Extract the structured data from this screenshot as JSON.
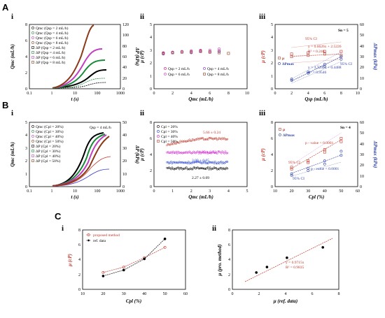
{
  "sections": [
    "A",
    "B",
    "C"
  ],
  "subpanels": [
    "i",
    "ii",
    "iii"
  ],
  "A": {
    "i": {
      "xlabel": "t (s)",
      "ylabel": "Qmc (mL/h)",
      "y2label": "ΔP (kPa)",
      "xticks": [
        "0.1",
        "1",
        "10",
        "100",
        "1000"
      ],
      "yticks": [
        "0",
        "2",
        "4",
        "6",
        "8"
      ],
      "y2ticks": [
        "0",
        "20",
        "40",
        "60",
        "80",
        "100",
        "120"
      ],
      "legend": [
        "Qmc (Qsp = 2 mL/h)",
        "Qmc (Qsp = 4 mL/h)",
        "Qmc (Qsp = 6 mL/h)",
        "Qmc (Qsp = 8 mL/h)",
        "ΔP (Qsp = 2 mL/h)",
        "ΔP (Qsp = 4 mL/h)",
        "ΔP (Qsp = 6 mL/h)",
        "ΔP (Qsp = 8 mL/h)"
      ]
    },
    "ii": {
      "xlabel": "Qmc (mL/h)",
      "ylabel": "μ (cP)",
      "xticks": [
        "0",
        "2",
        "4",
        "6",
        "8",
        "10"
      ],
      "yticks": [
        "0",
        "1",
        "2",
        "3",
        "4",
        "5"
      ],
      "legend": [
        "Qsp = 2 mL/h",
        "Qsp = 4 mL/h",
        "Qsp = 6 mL/h",
        "Qsp = 8 mL/h"
      ]
    },
    "iii": {
      "xlabel": "Qsp (mL/h)",
      "ylabel": "μ (cP)",
      "y2label": "ΔPmax (kPa)",
      "xticks": [
        "0",
        "2",
        "4",
        "6",
        "8",
        "10"
      ],
      "yticks": [
        "0",
        "1",
        "2",
        "3",
        "4",
        "5"
      ],
      "y2ticks": [
        "0",
        "10",
        "20",
        "30",
        "40",
        "50",
        "60"
      ],
      "tag": "Sn = 5",
      "legend": [
        "μ",
        "ΔPmax"
      ],
      "ann": [
        "95% CI",
        "y = 0.0626x + 2.5226",
        "R² = 0.246",
        "y = 3.7292x + 0.4488",
        "R² = 0.9546",
        "95% CI"
      ]
    }
  },
  "B": {
    "i": {
      "xlabel": "t (s)",
      "ylabel": "Qmc (mL/h)",
      "y2label": "ΔP (kPa)",
      "xticks": [
        "0.1",
        "1",
        "10",
        "100",
        "1000"
      ],
      "yticks": [
        "0",
        "1",
        "2",
        "3",
        "4",
        "5"
      ],
      "y2ticks": [
        "0",
        "10",
        "20",
        "30",
        "40",
        "50"
      ],
      "tag": "Qsp = 4 mL/h",
      "legend": [
        "Qmc (Cpl = 20%)",
        "Qmc (Cpl = 30%)",
        "Qmc (Cpl = 40%)",
        "Qmc (Cpl = 50%)",
        "ΔP (Cpl = 20%)",
        "ΔP (Cpl = 30%)",
        "ΔP (Cpl = 40%)",
        "ΔP (Cpl = 50%)"
      ]
    },
    "ii": {
      "xlabel": "Qmc (mL/h)",
      "ylabel": "μ (cP)",
      "xticks": [
        "0",
        "1",
        "2",
        "3",
        "4",
        "5"
      ],
      "yticks": [
        "0",
        "2",
        "4",
        "6",
        "8"
      ],
      "legend": [
        "Cpl = 20%",
        "Cpl = 30%",
        "Cpl = 40%",
        "Cpl = 50%"
      ],
      "ann": [
        "5.66 ± 0.24",
        "4.25 ± 0.12",
        "3.00 ± 0.05",
        "2.27 ± 0.09"
      ]
    },
    "iii": {
      "xlabel": "Cpl (%)",
      "ylabel": "μ (cP)",
      "y2label": "ΔPmax (kPa)",
      "xticks": [
        "10",
        "20",
        "30",
        "40",
        "50",
        "60"
      ],
      "yticks": [
        "0",
        "2",
        "4",
        "6",
        "8"
      ],
      "y2ticks": [
        "0",
        "10",
        "20",
        "30",
        "40",
        "50",
        "60"
      ],
      "tag": "Sn = 4",
      "legend": [
        "μ",
        "ΔPmax"
      ],
      "ann": [
        "p - value < 0.0001",
        "95% CI",
        "p - value < 0.0001",
        "95% CI"
      ]
    }
  },
  "C": {
    "i": {
      "xlabel": "Cpl (%)",
      "ylabel": "μ (cP)",
      "xticks": [
        "10",
        "20",
        "30",
        "40",
        "50",
        "60"
      ],
      "yticks": [
        "0",
        "2",
        "4",
        "6",
        "8"
      ],
      "legend": [
        "proposed method",
        "ref. data"
      ]
    },
    "ii": {
      "xlabel": "μ (ref. data)",
      "ylabel": "μ (pro. method)",
      "xticks": [
        "0",
        "2",
        "4",
        "6",
        "8"
      ],
      "yticks": [
        "0",
        "2",
        "4",
        "6",
        "8"
      ],
      "ann": [
        "y = 0.9715x",
        "R² = 0.9835"
      ]
    }
  },
  "chart_data": [
    {
      "panel": "A-ii",
      "type": "scatter",
      "xlim": [
        0,
        10
      ],
      "ylim": [
        0,
        5
      ],
      "series": [
        {
          "name": "Qsp = 2 mL/h",
          "color": "#c8107a",
          "x": [
            1,
            2,
            3,
            4,
            5,
            6,
            7
          ],
          "y": [
            2.8,
            2.85,
            2.9,
            2.9,
            2.95,
            2.9,
            2.95
          ]
        },
        {
          "name": "Qsp = 4 mL/h",
          "color": "#8030c0",
          "x": [
            1,
            2,
            3,
            4,
            5,
            6,
            7
          ],
          "y": [
            2.7,
            2.8,
            2.85,
            2.8,
            2.9,
            2.85,
            2.9
          ]
        },
        {
          "name": "Qsp = 6 mL/h",
          "color": "#c040c0",
          "x": [
            1,
            2,
            3,
            4,
            5,
            6,
            7
          ],
          "y": [
            2.75,
            2.85,
            2.9,
            2.95,
            3.0,
            3.0,
            3.1
          ]
        },
        {
          "name": "Qsp = 8 mL/h",
          "color": "#8b3a1a",
          "x": [
            1,
            2,
            3,
            4,
            5,
            6,
            7,
            8
          ],
          "y": [
            2.75,
            2.8,
            2.85,
            2.85,
            2.9,
            2.85,
            2.8,
            2.75
          ]
        }
      ]
    },
    {
      "panel": "A-iii",
      "type": "scatter",
      "xlim": [
        0,
        10
      ],
      "ylim": [
        0,
        5
      ],
      "series": [
        {
          "name": "μ",
          "color": "#c0392b",
          "x": [
            2,
            2,
            4,
            4,
            6,
            6,
            8,
            8
          ],
          "y": [
            2.5,
            2.7,
            2.6,
            2.8,
            2.9,
            2.7,
            2.9,
            2.6
          ]
        },
        {
          "name": "ΔPmax",
          "color": "#2c3ea8",
          "x": [
            2,
            2,
            4,
            4,
            6,
            6,
            8,
            8
          ],
          "y": [
            0.65,
            0.75,
            1.2,
            1.3,
            1.75,
            1.9,
            2.3,
            2.5
          ]
        }
      ]
    },
    {
      "panel": "B-ii",
      "type": "scatter",
      "xlim": [
        0,
        5
      ],
      "ylim": [
        0,
        8
      ],
      "series": [
        {
          "name": "Cpl = 20%",
          "color": "#000000",
          "y_mean": 2.27
        },
        {
          "name": "Cpl = 30%",
          "color": "#1a3ad0",
          "y_mean": 3.0
        },
        {
          "name": "Cpl = 40%",
          "color": "#d01ad0",
          "y_mean": 4.25
        },
        {
          "name": "Cpl = 50%",
          "color": "#c0392b",
          "y_mean": 5.66
        }
      ]
    },
    {
      "panel": "B-iii",
      "type": "scatter",
      "xlim": [
        10,
        60
      ],
      "ylim": [
        0,
        8
      ],
      "series": [
        {
          "name": "μ",
          "color": "#c0392b",
          "x": [
            20,
            20,
            30,
            30,
            40,
            40,
            50,
            50
          ],
          "y": [
            2.2,
            2.4,
            3.0,
            3.2,
            4.3,
            4.6,
            5.6,
            6.0
          ]
        },
        {
          "name": "ΔPmax",
          "color": "#2c3ea8",
          "x": [
            20,
            20,
            30,
            30,
            40,
            40,
            50,
            50
          ],
          "y": [
            1.4,
            1.6,
            2.0,
            2.3,
            2.8,
            3.2,
            3.9,
            4.4
          ]
        }
      ]
    },
    {
      "panel": "C-i",
      "type": "line",
      "xlim": [
        10,
        60
      ],
      "ylim": [
        0,
        8
      ],
      "series": [
        {
          "name": "proposed method",
          "color": "#c0392b",
          "x": [
            20,
            30,
            40,
            50
          ],
          "y": [
            2.27,
            3.0,
            4.25,
            5.66
          ]
        },
        {
          "name": "ref. data",
          "color": "#000000",
          "x": [
            20,
            30,
            40,
            50
          ],
          "y": [
            1.8,
            2.6,
            4.1,
            6.8
          ]
        }
      ]
    },
    {
      "panel": "C-ii",
      "type": "scatter",
      "xlim": [
        0,
        8
      ],
      "ylim": [
        0,
        8
      ],
      "series": [
        {
          "name": "",
          "color": "#000000",
          "x": [
            1.8,
            2.6,
            4.1,
            6.8
          ],
          "y": [
            2.27,
            3.0,
            4.25,
            5.66
          ]
        }
      ]
    }
  ]
}
